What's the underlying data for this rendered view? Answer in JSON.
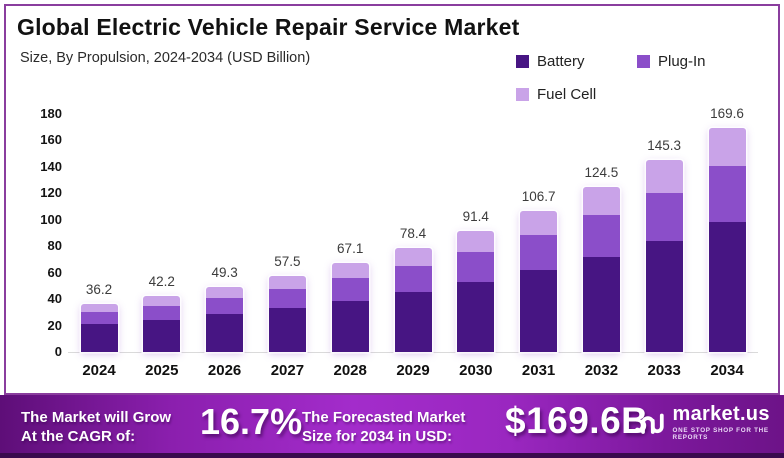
{
  "header": {
    "title": "Global Electric Vehicle Repair Service Market",
    "subtitle": "Size, By Propulsion, 2024-2034 (USD Billion)"
  },
  "chart_data": {
    "type": "bar",
    "stacked": true,
    "title": "Global Electric Vehicle Repair Service Market",
    "subtitle": "Size, By Propulsion, 2024-2034 (USD Billion)",
    "unit": "USD Billion",
    "categories": [
      "2024",
      "2025",
      "2026",
      "2027",
      "2028",
      "2029",
      "2030",
      "2031",
      "2032",
      "2033",
      "2034"
    ],
    "series": [
      {
        "name": "Battery",
        "color": "#471583",
        "values": [
          21.0,
          24.5,
          28.6,
          33.4,
          38.9,
          45.5,
          53.0,
          61.9,
          72.2,
          84.3,
          98.4
        ]
      },
      {
        "name": "Plug-In",
        "color": "#8b4ec9",
        "values": [
          9.1,
          10.6,
          12.3,
          14.4,
          16.8,
          19.6,
          22.9,
          26.7,
          31.1,
          36.3,
          42.4
        ]
      },
      {
        "name": "Fuel Cell",
        "color": "#c9a3e8",
        "values": [
          6.1,
          7.1,
          8.4,
          9.7,
          11.4,
          13.3,
          15.5,
          18.1,
          21.2,
          24.7,
          28.8
        ]
      }
    ],
    "totals": [
      36.2,
      42.2,
      49.3,
      57.5,
      67.1,
      78.4,
      91.4,
      106.7,
      124.5,
      145.3,
      169.6
    ],
    "ylim": [
      0,
      180
    ],
    "yticks": [
      0,
      20,
      40,
      60,
      80,
      100,
      120,
      140,
      160,
      180
    ],
    "grid": false,
    "legend_position": "top-right"
  },
  "legend": {
    "items": [
      {
        "label": "Battery",
        "color": "#471583"
      },
      {
        "label": "Plug-In",
        "color": "#8b4ec9"
      },
      {
        "label": "Fuel Cell",
        "color": "#c9a3e8"
      }
    ]
  },
  "footer": {
    "cagr_label_line1": "The Market will Grow",
    "cagr_label_line2": "At the CAGR of:",
    "cagr_value": "16.7%",
    "forecast_label_line1": "The Forecasted Market",
    "forecast_label_line2": "Size for 2034 in USD:",
    "forecast_value": "$169.6B",
    "brand_name": "market.us",
    "brand_tagline": "ONE STOP SHOP FOR THE REPORTS"
  },
  "colors": {
    "frame_border": "#8a3d9e",
    "banner_gradient_dark": "#5e0e78",
    "banner_gradient_bright": "#a32ccb",
    "banner_bottom_strip": "#3a0a4d",
    "value_label": "#3c3c3c"
  }
}
